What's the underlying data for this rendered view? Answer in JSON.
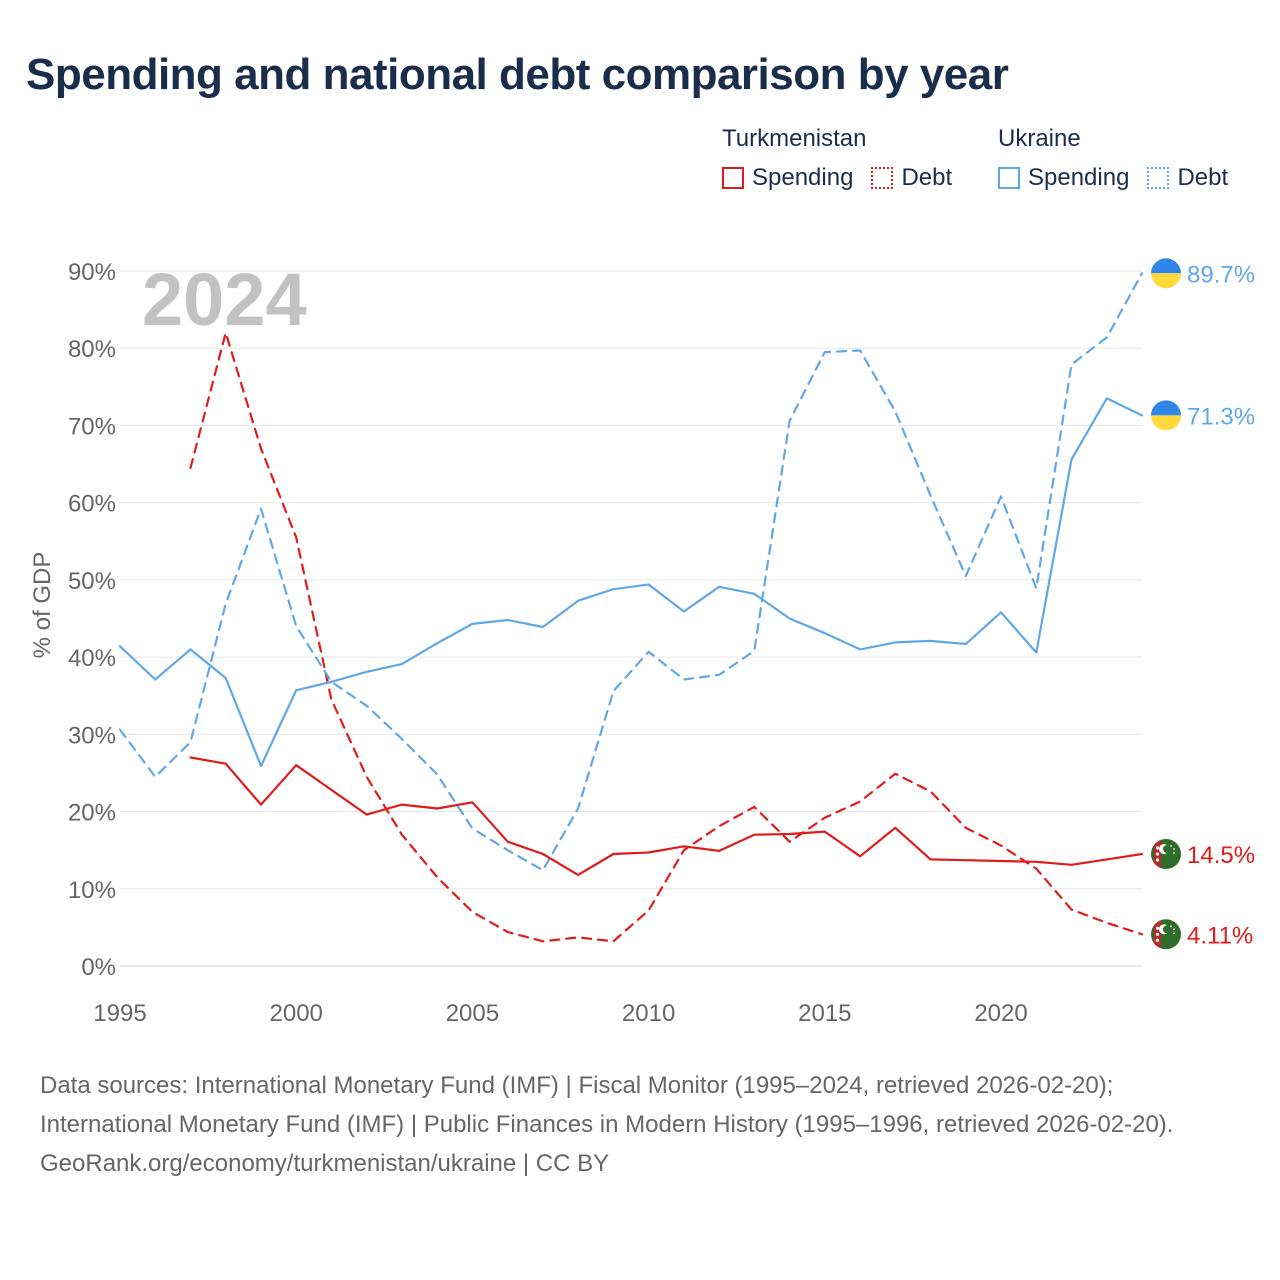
{
  "title": "Spending and national debt comparison by year",
  "legend": {
    "groups": [
      {
        "name": "Turkmenistan",
        "items": [
          {
            "label": "Spending",
            "style": "solid",
            "color": "#e01b1b"
          },
          {
            "label": "Debt",
            "style": "dotted",
            "color": "#e01b1b"
          }
        ]
      },
      {
        "name": "Ukraine",
        "items": [
          {
            "label": "Spending",
            "style": "solid",
            "color": "#5fa8e8"
          },
          {
            "label": "Debt",
            "style": "dotted",
            "color": "#5fa8e8"
          }
        ]
      }
    ]
  },
  "chart_data": {
    "type": "line",
    "year_overlay": "2024",
    "ylabel": "% of GDP",
    "xlabel": "",
    "xlim": [
      1995,
      2024
    ],
    "ylim": [
      0,
      90
    ],
    "x_ticks": [
      1995,
      2000,
      2005,
      2010,
      2015,
      2020
    ],
    "x_tick_labels": [
      "1995",
      "2000",
      "2005",
      "2010",
      "2015",
      "2020"
    ],
    "y_ticks": [
      0,
      10,
      20,
      30,
      40,
      50,
      60,
      70,
      80,
      90
    ],
    "y_tick_labels": [
      "0%",
      "10%",
      "20%",
      "30%",
      "40%",
      "50%",
      "60%",
      "70%",
      "80%",
      "90%"
    ],
    "grid": true,
    "series": [
      {
        "name": "Turkmenistan Spending",
        "country": "Turkmenistan",
        "metric": "Spending",
        "color": "#e01b1b",
        "dash": false,
        "x": [
          1997,
          1998,
          1999,
          2000,
          2001,
          2002,
          2003,
          2004,
          2005,
          2006,
          2007,
          2008,
          2009,
          2010,
          2011,
          2012,
          2013,
          2014,
          2015,
          2016,
          2017,
          2018,
          2019,
          2020,
          2021,
          2022,
          2023,
          2024
        ],
        "values": [
          27.0,
          26.2,
          20.9,
          26.0,
          22.8,
          19.6,
          20.9,
          20.4,
          21.2,
          16.1,
          14.5,
          11.8,
          14.5,
          14.7,
          15.5,
          14.9,
          17.0,
          17.1,
          17.4,
          14.2,
          17.9,
          13.8,
          13.7,
          13.6,
          13.5,
          13.1,
          13.8,
          14.5
        ],
        "end_label": "14.5%",
        "flag": "turkmenistan"
      },
      {
        "name": "Turkmenistan Debt",
        "country": "Turkmenistan",
        "metric": "Debt",
        "color": "#e01b1b",
        "dash": true,
        "x": [
          1997,
          1998,
          1999,
          2000,
          2001,
          2002,
          2003,
          2004,
          2005,
          2006,
          2007,
          2008,
          2009,
          2010,
          2011,
          2012,
          2013,
          2014,
          2015,
          2016,
          2017,
          2018,
          2019,
          2020,
          2021,
          2022,
          2023,
          2024
        ],
        "values": [
          64.5,
          82.0,
          67.0,
          55.5,
          34.5,
          24.5,
          17.0,
          11.5,
          7.0,
          4.4,
          3.2,
          3.7,
          3.2,
          7.2,
          15.0,
          18.1,
          20.6,
          16.1,
          19.2,
          21.3,
          24.9,
          22.6,
          17.9,
          15.6,
          12.6,
          7.3,
          5.6,
          4.11
        ],
        "end_label": "4.11%",
        "flag": "turkmenistan"
      },
      {
        "name": "Ukraine Spending",
        "country": "Ukraine",
        "metric": "Spending",
        "color": "#5fa8e8",
        "dash": false,
        "x": [
          1995,
          1996,
          1997,
          1998,
          1999,
          2000,
          2001,
          2002,
          2003,
          2004,
          2005,
          2006,
          2007,
          2008,
          2009,
          2010,
          2011,
          2012,
          2013,
          2014,
          2015,
          2016,
          2017,
          2018,
          2019,
          2020,
          2021,
          2022,
          2023,
          2024
        ],
        "values": [
          41.4,
          37.1,
          41.0,
          37.3,
          25.9,
          35.7,
          36.8,
          38.1,
          39.1,
          41.8,
          44.3,
          44.8,
          43.9,
          47.3,
          48.8,
          49.4,
          45.9,
          49.1,
          48.2,
          45.0,
          43.1,
          41.0,
          41.9,
          42.1,
          41.7,
          45.8,
          40.6,
          65.6,
          73.5,
          71.3
        ],
        "end_label": "71.3%",
        "flag": "ukraine"
      },
      {
        "name": "Ukraine Debt",
        "country": "Ukraine",
        "metric": "Debt",
        "color": "#5fa8e8",
        "dash": true,
        "x": [
          1995,
          1996,
          1997,
          1998,
          1999,
          2000,
          2001,
          2002,
          2003,
          2004,
          2005,
          2006,
          2007,
          2008,
          2009,
          2010,
          2011,
          2012,
          2013,
          2014,
          2015,
          2016,
          2017,
          2018,
          2019,
          2020,
          2021,
          2022,
          2023,
          2024
        ],
        "values": [
          30.6,
          24.5,
          29.0,
          46.9,
          59.2,
          44.0,
          36.8,
          33.7,
          29.4,
          24.8,
          17.8,
          15.0,
          12.4,
          20.4,
          35.6,
          40.7,
          37.1,
          37.7,
          40.8,
          70.6,
          79.5,
          79.7,
          71.8,
          60.9,
          50.5,
          60.8,
          48.9,
          77.9,
          81.4,
          89.7
        ],
        "end_label": "89.7%",
        "flag": "ukraine"
      }
    ]
  },
  "footer": {
    "sources": "Data sources: International Monetary Fund (IMF) | Fiscal Monitor (1995–2024, retrieved 2026-02-20); International Monetary Fund (IMF) | Public Finances in Modern History (1995–1996, retrieved 2026-02-20).",
    "credit": "GeoRank.org/economy/turkmenistan/ukraine | CC BY"
  }
}
